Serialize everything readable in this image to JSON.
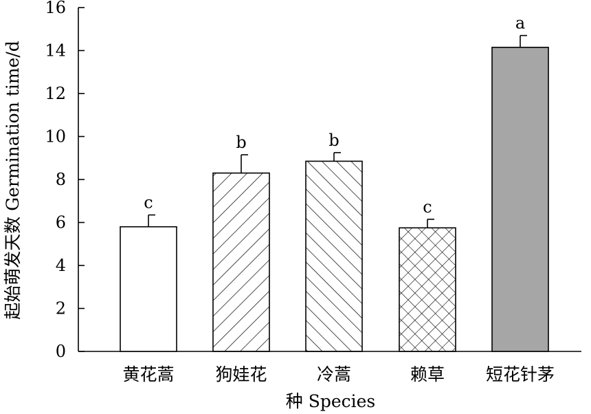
{
  "chart_data": {
    "type": "bar",
    "title": "",
    "xlabel": "种 Species",
    "ylabel": "起始萌发天数 Germination time/d",
    "ylim": [
      0,
      16
    ],
    "yticks": [
      0,
      2,
      4,
      6,
      8,
      10,
      12,
      14,
      16
    ],
    "grid": false,
    "legend": "none",
    "categories": [
      "黄花蒿",
      "狗娃花",
      "冷蒿",
      "赖草",
      "短花针茅"
    ],
    "values": [
      5.8,
      8.3,
      8.85,
      5.75,
      14.15
    ],
    "errors": [
      0.55,
      0.85,
      0.4,
      0.4,
      0.55
    ],
    "significance": [
      "c",
      "b",
      "b",
      "c",
      "a"
    ],
    "fills": [
      "none",
      "diagonal-forward",
      "diagonal-back",
      "crosshatch",
      "solid-gray"
    ],
    "colors": {
      "stroke": "#000000",
      "solid": "#a6a6a6",
      "background": "#ffffff"
    }
  }
}
